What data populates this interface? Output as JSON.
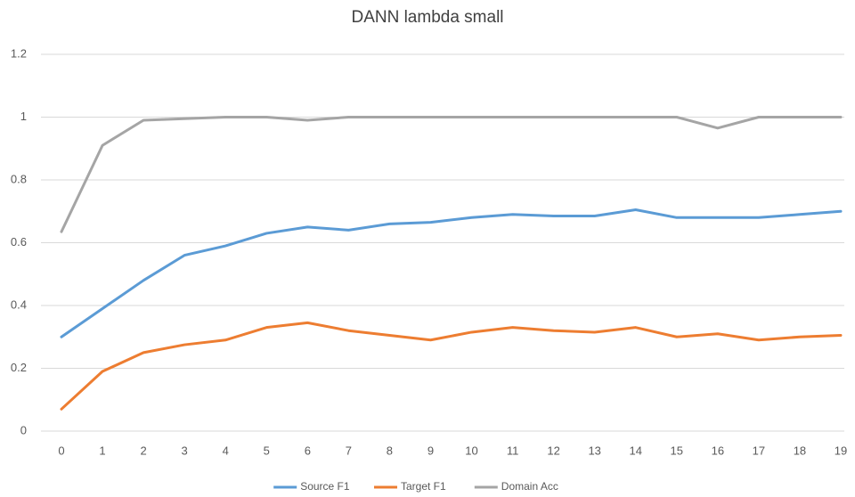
{
  "chart_data": {
    "type": "line",
    "title": "DANN lambda small",
    "categories": [
      "0",
      "1",
      "2",
      "3",
      "4",
      "5",
      "6",
      "7",
      "8",
      "9",
      "10",
      "11",
      "12",
      "13",
      "14",
      "15",
      "16",
      "17",
      "18",
      "19"
    ],
    "series": [
      {
        "name": "Source F1",
        "color": "#5b9bd5",
        "values": [
          0.3,
          0.39,
          0.48,
          0.56,
          0.59,
          0.63,
          0.65,
          0.64,
          0.66,
          0.665,
          0.68,
          0.69,
          0.685,
          0.685,
          0.705,
          0.68,
          0.68,
          0.68,
          0.69,
          0.7
        ]
      },
      {
        "name": "Target F1",
        "color": "#ed7d31",
        "values": [
          0.07,
          0.19,
          0.25,
          0.275,
          0.29,
          0.33,
          0.345,
          0.32,
          0.305,
          0.29,
          0.315,
          0.33,
          0.32,
          0.315,
          0.33,
          0.3,
          0.31,
          0.29,
          0.3,
          0.305
        ]
      },
      {
        "name": "Domain Acc",
        "color": "#a5a5a5",
        "values": [
          0.635,
          0.91,
          0.99,
          0.995,
          1.0,
          1.0,
          0.99,
          1.0,
          1.0,
          1.0,
          1.0,
          1.0,
          1.0,
          1.0,
          1.0,
          1.0,
          0.965,
          1.0,
          1.0,
          1.0
        ]
      }
    ],
    "ylim": [
      0,
      1.2
    ],
    "yticks": [
      0,
      0.2,
      0.4,
      0.6,
      0.8,
      1,
      1.2
    ],
    "grid": true,
    "legend": "bottom"
  }
}
